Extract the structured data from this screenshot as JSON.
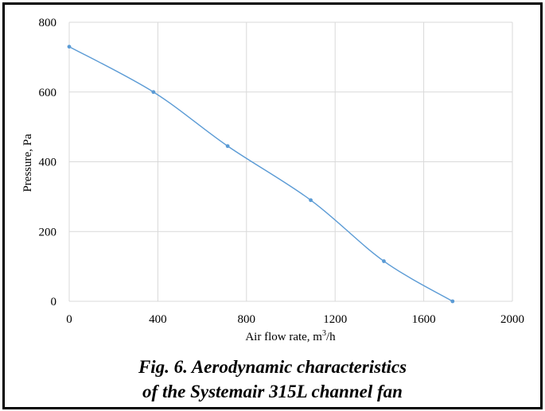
{
  "chart_data": {
    "type": "line",
    "x": [
      0,
      380,
      715,
      1090,
      1420,
      1730
    ],
    "series": [
      {
        "name": "",
        "values": [
          730,
          600,
          445,
          290,
          115,
          0
        ],
        "color": "#5b9bd5"
      }
    ],
    "xlabel": "Air flow rate, m",
    "xlabel_sup": "3",
    "xlabel_tail": "/h",
    "ylabel": "Pressure, Pa",
    "xlim": [
      0,
      2000
    ],
    "ylim": [
      0,
      800
    ],
    "xticks": [
      0,
      400,
      800,
      1200,
      1600,
      2000
    ],
    "yticks": [
      0,
      200,
      400,
      600,
      800
    ],
    "grid": true,
    "gridColor": "#d9d9d9"
  },
  "caption": {
    "line1": "Fig. 6. Aerodynamic characteristics",
    "line2": "of the Systemair 315L channel fan"
  }
}
